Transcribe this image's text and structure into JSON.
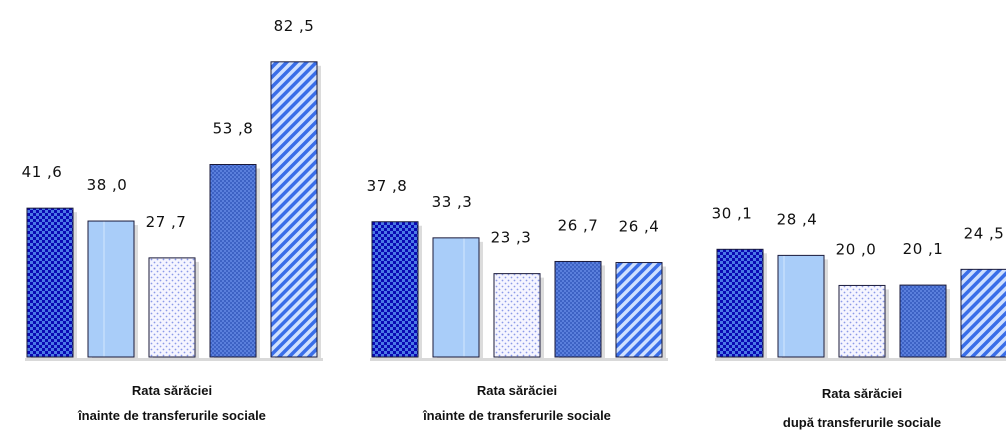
{
  "chart_data": {
    "type": "bar",
    "title": "",
    "xlabel": "",
    "ylabel": "",
    "groups": [
      {
        "label_line1": "Rata sărăciei",
        "label_line2": "înainte de transferurile sociale",
        "values": [
          41.6,
          38.0,
          27.7,
          53.8,
          82.5
        ],
        "value_labels": [
          "41 ,6",
          "38 ,0",
          "27 ,7",
          "53 ,8",
          "82 ,5"
        ]
      },
      {
        "label_line1": "Rata sărăciei",
        "label_line2": "înainte de transferurile sociale",
        "values": [
          37.8,
          33.3,
          23.3,
          26.7,
          26.4
        ],
        "value_labels": [
          "37 ,8",
          "33 ,3",
          "23 ,3",
          "26 ,7",
          "26 ,4"
        ]
      },
      {
        "label_line1": "Rata sărăciei",
        "label_line2": "după transferurile sociale",
        "values": [
          30.1,
          28.4,
          20.0,
          20.1,
          24.5
        ],
        "value_labels": [
          "30 ,1",
          "28 ,4",
          "20 ,0",
          "20 ,1",
          "24 ,5"
        ]
      }
    ],
    "series_styles": [
      "checker-darkblue",
      "light-blue",
      "dotted-white",
      "crosshatch-blue",
      "diagonal-stripes-blue"
    ],
    "colors": {
      "checker_dark": "#0a0ab4",
      "checker_light": "#4a78e6",
      "light_blue": "#a9cdf9",
      "dotted_bg": "#f5f5ff",
      "dots": "#8b9ae8",
      "crosshatch": "#4a6fd3",
      "stripe_light": "#cfe0ff",
      "stripe_dark": "#3a6ee8"
    },
    "grid": false,
    "legend": "none"
  }
}
